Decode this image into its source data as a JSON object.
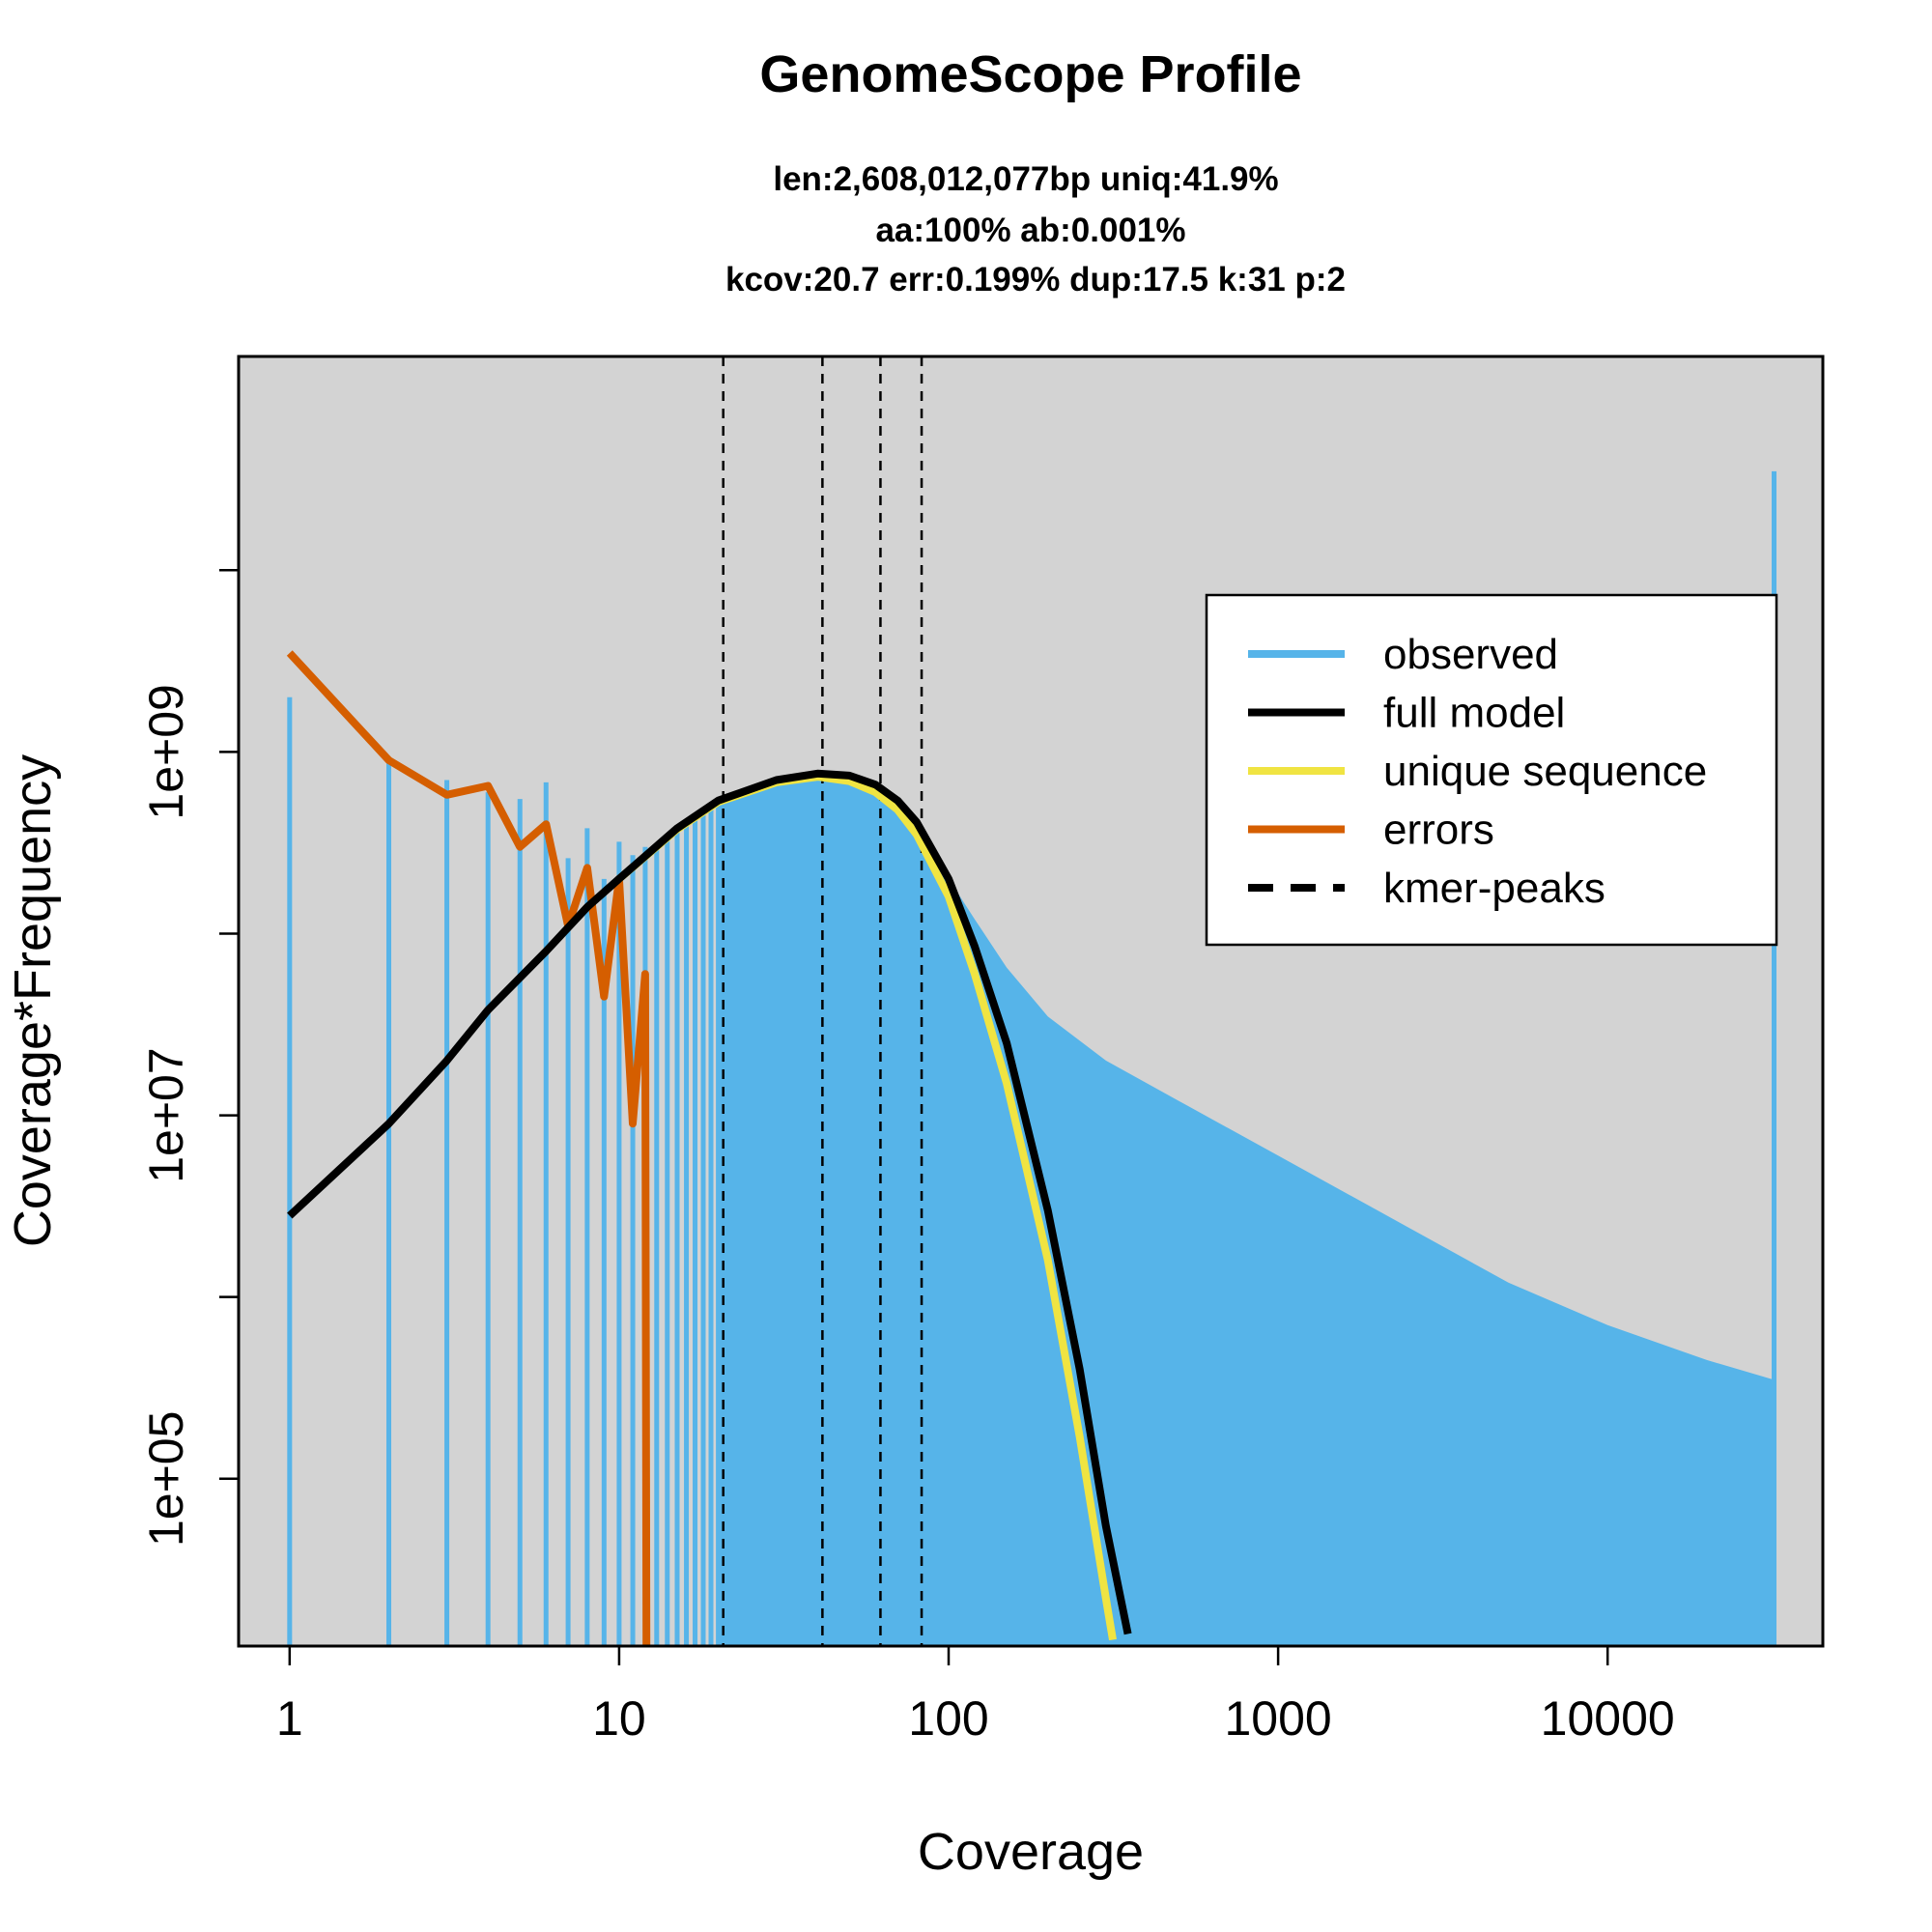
{
  "chart_data": {
    "type": "area",
    "title": "GenomeScope Profile",
    "subtitle_lines": [
      "len:2,608,012,077bp uniq:41.9%",
      "aa:100% ab:0.001%",
      "kcov:20.7 err:0.199%  dup:17.5  k:31 p:2"
    ],
    "xlabel": "Coverage",
    "ylabel": "Coverage*Frequency",
    "x_scale": "log",
    "y_scale": "log",
    "xlim": [
      0.7,
      45000
    ],
    "ylim": [
      12000,
      150000000000
    ],
    "x_ticks": [
      {
        "value": 1,
        "label": "1"
      },
      {
        "value": 10,
        "label": "10"
      },
      {
        "value": 100,
        "label": "100"
      },
      {
        "value": 1000,
        "label": "1000"
      },
      {
        "value": 10000,
        "label": "10000"
      }
    ],
    "y_ticks": [
      {
        "value": 100000,
        "label": "1e+05"
      },
      {
        "value": 1000000,
        "label": ""
      },
      {
        "value": 10000000,
        "label": "1e+07"
      },
      {
        "value": 100000000,
        "label": ""
      },
      {
        "value": 1000000000,
        "label": "1e+09"
      },
      {
        "value": 10000000000,
        "label": ""
      }
    ],
    "kmer_peaks": [
      20.7,
      41.4,
      62.1,
      82.8
    ],
    "legend": {
      "position": "top-right",
      "entries": [
        {
          "label": "observed",
          "color": "#56B4E9",
          "style": "solid"
        },
        {
          "label": "full model",
          "color": "#000000",
          "style": "solid"
        },
        {
          "label": "unique sequence",
          "color": "#F0E442",
          "style": "solid"
        },
        {
          "label": "errors",
          "color": "#D55E00",
          "style": "solid"
        },
        {
          "label": "kmer-peaks",
          "color": "#000000",
          "style": "dashed"
        }
      ]
    },
    "observed": {
      "name": "observed",
      "color": "#56B4E9",
      "bar_points": [
        {
          "x": 1,
          "y": 2000000000
        },
        {
          "x": 2,
          "y": 900000000
        },
        {
          "x": 3,
          "y": 700000000
        },
        {
          "x": 4,
          "y": 600000000
        },
        {
          "x": 5,
          "y": 550000000
        },
        {
          "x": 6,
          "y": 680000000
        },
        {
          "x": 7,
          "y": 260000000
        },
        {
          "x": 8,
          "y": 380000000
        },
        {
          "x": 9,
          "y": 200000000
        },
        {
          "x": 10,
          "y": 320000000
        },
        {
          "x": 11,
          "y": 270000000
        },
        {
          "x": 12,
          "y": 300000000
        },
        {
          "x": 13,
          "y": 310000000
        },
        {
          "x": 14,
          "y": 330000000
        },
        {
          "x": 15,
          "y": 360000000
        },
        {
          "x": 16,
          "y": 390000000
        },
        {
          "x": 17,
          "y": 420000000
        },
        {
          "x": 18,
          "y": 450000000
        },
        {
          "x": 19,
          "y": 480000000
        },
        {
          "x": 20,
          "y": 510000000
        }
      ],
      "envelope": [
        {
          "x": 20,
          "y": 510000000
        },
        {
          "x": 25,
          "y": 600000000
        },
        {
          "x": 30,
          "y": 680000000
        },
        {
          "x": 35,
          "y": 720000000
        },
        {
          "x": 40,
          "y": 730000000
        },
        {
          "x": 45,
          "y": 720000000
        },
        {
          "x": 50,
          "y": 680000000
        },
        {
          "x": 60,
          "y": 580000000
        },
        {
          "x": 70,
          "y": 460000000
        },
        {
          "x": 80,
          "y": 360000000
        },
        {
          "x": 90,
          "y": 270000000
        },
        {
          "x": 100,
          "y": 200000000
        },
        {
          "x": 120,
          "y": 120000000
        },
        {
          "x": 150,
          "y": 65000000
        },
        {
          "x": 200,
          "y": 35000000
        },
        {
          "x": 300,
          "y": 20000000
        },
        {
          "x": 500,
          "y": 12000000
        },
        {
          "x": 1000,
          "y": 6000000
        },
        {
          "x": 2000,
          "y": 3000000
        },
        {
          "x": 5000,
          "y": 1200000
        },
        {
          "x": 10000,
          "y": 700000
        },
        {
          "x": 20000,
          "y": 450000
        },
        {
          "x": 32000,
          "y": 350000
        }
      ],
      "last_bin": {
        "x": 32000,
        "y": 35000000000
      }
    },
    "full_model": {
      "name": "full model",
      "color": "#000000",
      "points": [
        {
          "x": 1,
          "y": 2800000
        },
        {
          "x": 2,
          "y": 9000000
        },
        {
          "x": 3,
          "y": 20000000
        },
        {
          "x": 4,
          "y": 38000000
        },
        {
          "x": 6,
          "y": 80000000
        },
        {
          "x": 8,
          "y": 140000000
        },
        {
          "x": 10,
          "y": 200000000
        },
        {
          "x": 15,
          "y": 380000000
        },
        {
          "x": 20,
          "y": 540000000
        },
        {
          "x": 30,
          "y": 700000000
        },
        {
          "x": 40,
          "y": 760000000
        },
        {
          "x": 50,
          "y": 740000000
        },
        {
          "x": 60,
          "y": 660000000
        },
        {
          "x": 70,
          "y": 540000000
        },
        {
          "x": 80,
          "y": 410000000
        },
        {
          "x": 100,
          "y": 200000000
        },
        {
          "x": 120,
          "y": 85000000
        },
        {
          "x": 150,
          "y": 25000000
        },
        {
          "x": 200,
          "y": 3000000
        },
        {
          "x": 250,
          "y": 400000
        },
        {
          "x": 300,
          "y": 55000
        },
        {
          "x": 350,
          "y": 14000
        }
      ]
    },
    "unique_sequence": {
      "name": "unique sequence",
      "color": "#F0E442",
      "points": [
        {
          "x": 10,
          "y": 200000000
        },
        {
          "x": 15,
          "y": 375000000
        },
        {
          "x": 20,
          "y": 530000000
        },
        {
          "x": 30,
          "y": 680000000
        },
        {
          "x": 40,
          "y": 730000000
        },
        {
          "x": 50,
          "y": 690000000
        },
        {
          "x": 60,
          "y": 600000000
        },
        {
          "x": 70,
          "y": 480000000
        },
        {
          "x": 80,
          "y": 350000000
        },
        {
          "x": 100,
          "y": 160000000
        },
        {
          "x": 120,
          "y": 60000000
        },
        {
          "x": 150,
          "y": 15000000
        },
        {
          "x": 200,
          "y": 1600000
        },
        {
          "x": 250,
          "y": 170000
        },
        {
          "x": 300,
          "y": 22000
        },
        {
          "x": 315,
          "y": 13000
        }
      ]
    },
    "errors": {
      "name": "errors",
      "color": "#D55E00",
      "points": [
        {
          "x": 1,
          "y": 3500000000
        },
        {
          "x": 2,
          "y": 900000000
        },
        {
          "x": 3,
          "y": 580000000
        },
        {
          "x": 4,
          "y": 650000000
        },
        {
          "x": 5,
          "y": 300000000
        },
        {
          "x": 6,
          "y": 400000000
        },
        {
          "x": 7,
          "y": 110000000
        },
        {
          "x": 8,
          "y": 230000000
        },
        {
          "x": 9,
          "y": 45000000
        },
        {
          "x": 10,
          "y": 200000000
        },
        {
          "x": 11,
          "y": 9000000
        },
        {
          "x": 12,
          "y": 60000000
        },
        {
          "x": 12.1,
          "y": 12000
        }
      ]
    }
  }
}
